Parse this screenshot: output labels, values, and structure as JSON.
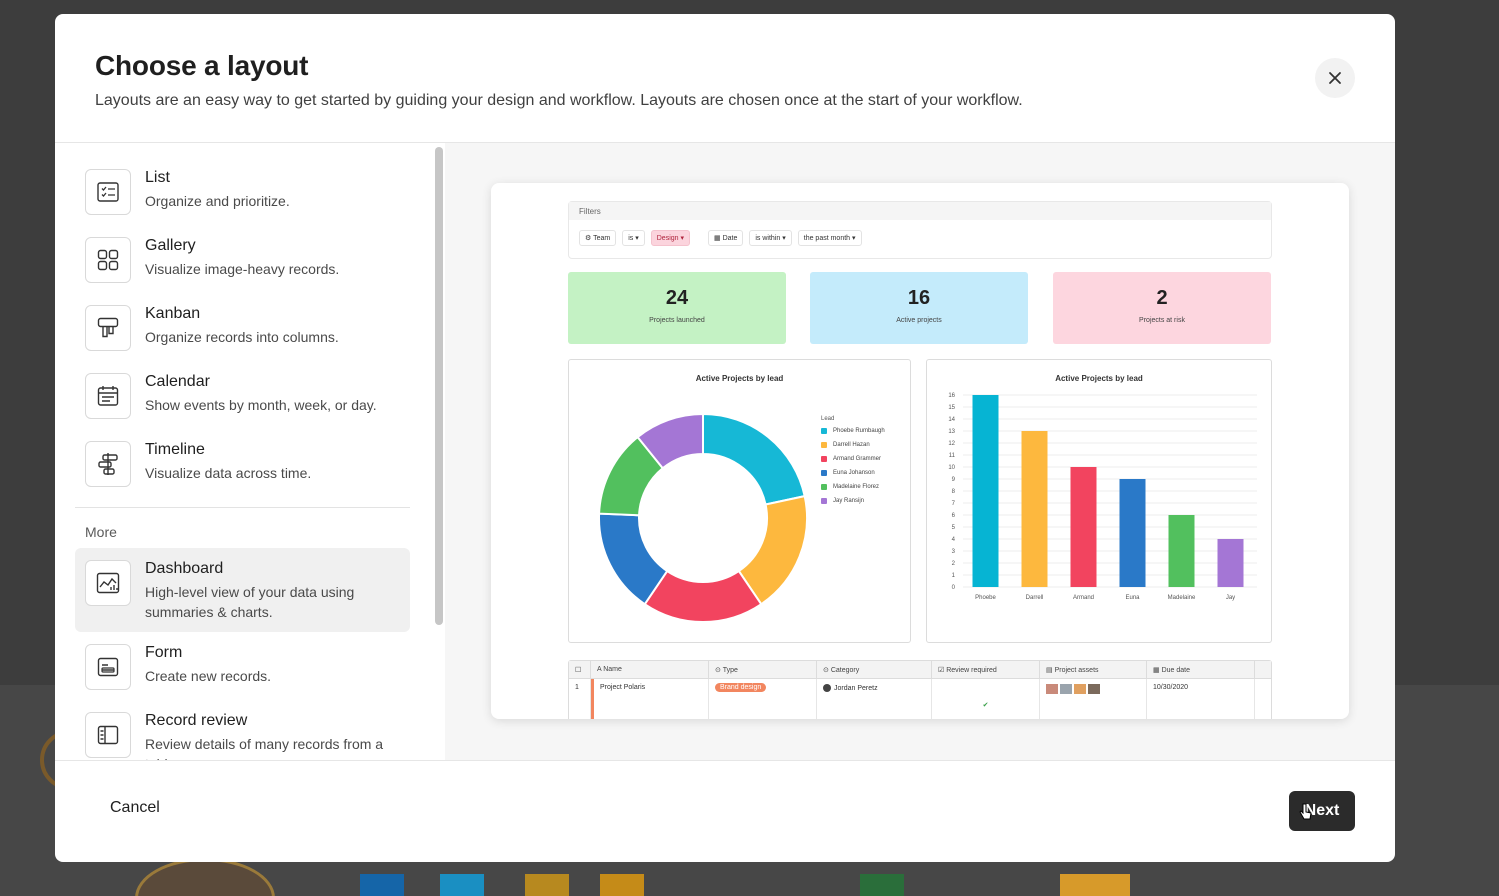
{
  "modal": {
    "title": "Choose a layout",
    "subtitle": "Layouts are an easy way to get started by guiding your design and workflow. Layouts are chosen once at the start of your workflow."
  },
  "layouts": [
    {
      "title": "List",
      "desc": "Organize and prioritize.",
      "icon": "list-icon"
    },
    {
      "title": "Gallery",
      "desc": "Visualize image-heavy records.",
      "icon": "gallery-icon"
    },
    {
      "title": "Kanban",
      "desc": "Organize records into columns.",
      "icon": "kanban-icon"
    },
    {
      "title": "Calendar",
      "desc": "Show events by month, week, or day.",
      "icon": "calendar-icon"
    },
    {
      "title": "Timeline",
      "desc": "Visualize data across time.",
      "icon": "timeline-icon"
    }
  ],
  "more": {
    "label": "More",
    "items": [
      {
        "title": "Dashboard",
        "desc": "High-level view of your data using summaries & charts.",
        "icon": "dashboard-icon",
        "selected": true
      },
      {
        "title": "Form",
        "desc": "Create new records.",
        "icon": "form-icon"
      },
      {
        "title": "Record review",
        "desc": "Review details of many records from a table.",
        "icon": "record-review-icon"
      }
    ]
  },
  "preview": {
    "filters": {
      "heading": "Filters",
      "chips": [
        "Team",
        "is",
        "Design",
        "Date",
        "is within",
        "the past month"
      ]
    },
    "stats": [
      {
        "value": "24",
        "label": "Projects launched",
        "color": "#c4f2c4"
      },
      {
        "value": "16",
        "label": "Active projects",
        "color": "#c4ebfb"
      },
      {
        "value": "2",
        "label": "Projects at risk",
        "color": "#fdd6df"
      }
    ],
    "donut_title": "Active Projects by lead",
    "bar_title": "Active Projects by lead",
    "legend_heading": "Lead",
    "table": {
      "headers": [
        "Name",
        "Type",
        "Category",
        "Review required",
        "Project assets",
        "Due date"
      ],
      "row": {
        "index": "1",
        "name": "Project Polaris",
        "type": "Brand design",
        "category": "Jordan Peretz",
        "check": "✔",
        "due": "10/30/2020"
      }
    }
  },
  "chart_data": [
    {
      "type": "pie",
      "title": "Active Projects by lead",
      "legend_title": "Lead",
      "categories": [
        "Phoebe Rumbaugh",
        "Darrell Hazan",
        "Armand Grammer",
        "Euna Johanson",
        "Madelaine Florez",
        "Jay Ransijn"
      ],
      "values": [
        4,
        3.5,
        3.5,
        3,
        2.5,
        2
      ],
      "colors": [
        "#16b8d6",
        "#fdb83e",
        "#f2445f",
        "#2a79c8",
        "#52c05e",
        "#a476d5"
      ]
    },
    {
      "type": "bar",
      "title": "Active Projects by lead",
      "categories": [
        "Phoebe",
        "Darrell",
        "Armand",
        "Euna",
        "Madelaine",
        "Jay"
      ],
      "values": [
        16,
        13,
        10,
        9,
        6,
        4
      ],
      "colors": [
        "#06b4d3",
        "#fdb83e",
        "#f2445f",
        "#2a79c8",
        "#52c05e",
        "#a476d5"
      ],
      "ylim": [
        0,
        16
      ],
      "yticks": [
        0,
        1,
        2,
        3,
        4,
        5,
        6,
        7,
        8,
        9,
        10,
        11,
        12,
        13,
        14,
        15,
        16
      ]
    }
  ],
  "footer": {
    "cancel": "Cancel",
    "next": "Next"
  }
}
